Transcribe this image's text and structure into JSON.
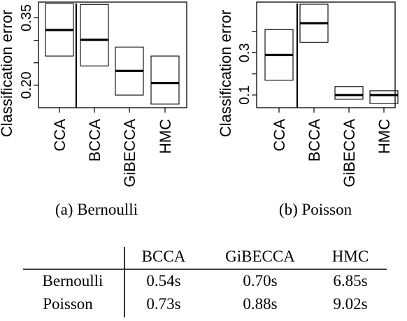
{
  "chart_data": [
    {
      "type": "boxplot",
      "caption": "(a) Bernoulli",
      "ylabel": "Classification error",
      "ylim": [
        0.15,
        0.385
      ],
      "yticks": [
        0.2,
        0.25,
        0.3,
        0.35
      ],
      "ytick_labels": [
        "0.20",
        "",
        "",
        "0.35"
      ],
      "categories": [
        "CCA",
        "BCCA",
        "GiBECCA",
        "HMC"
      ],
      "boxes": [
        {
          "name": "CCA",
          "q1": 0.265,
          "median": 0.323,
          "q3": 0.382
        },
        {
          "name": "BCCA",
          "q1": 0.243,
          "median": 0.301,
          "q3": 0.38
        },
        {
          "name": "GiBECCA",
          "q1": 0.178,
          "median": 0.232,
          "q3": 0.285
        },
        {
          "name": "HMC",
          "q1": 0.158,
          "median": 0.205,
          "q3": 0.265
        }
      ]
    },
    {
      "type": "boxplot",
      "caption": "(b) Poisson",
      "ylabel": "Classification error",
      "ylim": [
        0.04,
        0.54
      ],
      "yticks": [
        0.1,
        0.2,
        0.3,
        0.4
      ],
      "ytick_labels": [
        "0.1",
        "",
        "0.3",
        ""
      ],
      "categories": [
        "CCA",
        "BCCA",
        "GiBECCA",
        "HMC"
      ],
      "boxes": [
        {
          "name": "CCA",
          "q1": 0.17,
          "median": 0.29,
          "q3": 0.41
        },
        {
          "name": "BCCA",
          "q1": 0.35,
          "median": 0.44,
          "q3": 0.53
        },
        {
          "name": "GiBECCA",
          "q1": 0.08,
          "median": 0.1,
          "q3": 0.14
        },
        {
          "name": "HMC",
          "q1": 0.06,
          "median": 0.1,
          "q3": 0.12
        }
      ]
    }
  ],
  "table": {
    "columns": [
      "BCCA",
      "GiBECCA",
      "HMC"
    ],
    "rows": [
      {
        "label": "Bernoulli",
        "values": [
          "0.54s",
          "0.70s",
          "6.85s"
        ]
      },
      {
        "label": "Poisson",
        "values": [
          "0.73s",
          "0.88s",
          "9.02s"
        ]
      }
    ]
  }
}
